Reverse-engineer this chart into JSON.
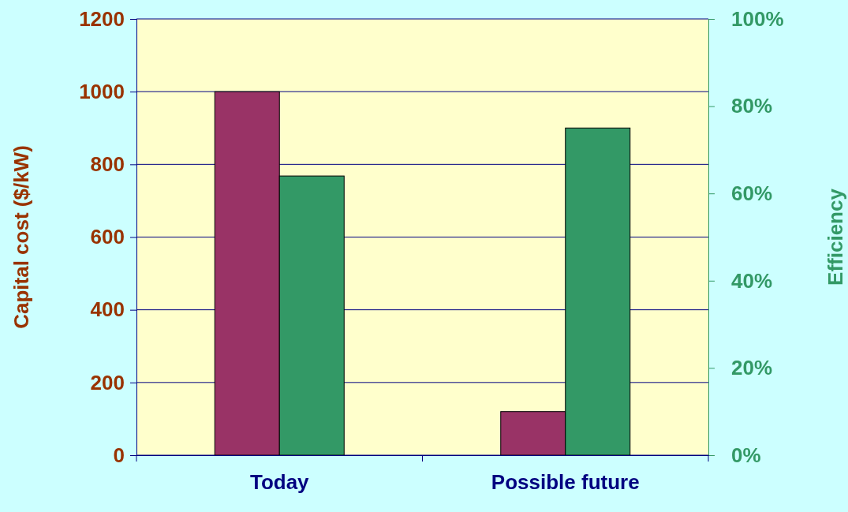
{
  "chart_data": {
    "type": "bar",
    "ylabel": "Capital cost ($/kW)",
    "y2label": "Efficiency",
    "categories": [
      "Today",
      "Possible future"
    ],
    "series": [
      {
        "color": "#993366",
        "values": [
          1000,
          120
        ]
      },
      {
        "color": "#339966",
        "values": [
          64,
          75
        ],
        "axis": "y2"
      }
    ],
    "ylim": [
      0,
      1200
    ],
    "yticks": [
      0,
      200,
      400,
      600,
      800,
      1000,
      1200
    ],
    "y2lim": [
      0,
      100
    ],
    "y2ticks": [
      {
        "value": 0,
        "label": "0%"
      },
      {
        "value": 20,
        "label": "20%"
      },
      {
        "value": 40,
        "label": "40%"
      },
      {
        "value": 60,
        "label": "60%"
      },
      {
        "value": 80,
        "label": "80%"
      },
      {
        "value": 100,
        "label": "100%"
      }
    ],
    "grid": "y"
  }
}
